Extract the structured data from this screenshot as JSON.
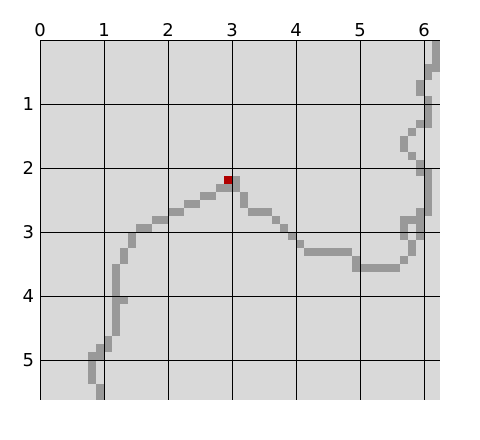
{
  "grid": {
    "x_ticks": [
      "0",
      "1",
      "2",
      "3",
      "4",
      "5",
      "6"
    ],
    "y_ticks": [
      "1",
      "2",
      "3",
      "4",
      "5"
    ],
    "background_color": "#d9d9d9",
    "grid_line_color": "#000000"
  },
  "path": {
    "color": "#999999",
    "cells": [
      [
        49,
        0
      ],
      [
        49,
        1
      ],
      [
        49,
        2
      ],
      [
        49,
        3
      ],
      [
        48,
        3
      ],
      [
        48,
        4
      ],
      [
        47,
        5
      ],
      [
        47,
        6
      ],
      [
        48,
        7
      ],
      [
        48,
        8
      ],
      [
        48,
        9
      ],
      [
        48,
        10
      ],
      [
        47,
        10
      ],
      [
        46,
        11
      ],
      [
        45,
        12
      ],
      [
        45,
        13
      ],
      [
        46,
        14
      ],
      [
        47,
        15
      ],
      [
        47,
        16
      ],
      [
        48,
        16
      ],
      [
        48,
        17
      ],
      [
        48,
        18
      ],
      [
        48,
        19
      ],
      [
        48,
        20
      ],
      [
        48,
        21
      ],
      [
        47,
        21
      ],
      [
        47,
        22
      ],
      [
        47,
        23
      ],
      [
        47,
        24
      ],
      [
        46,
        22
      ],
      [
        45,
        22
      ],
      [
        45,
        23
      ],
      [
        45,
        24
      ],
      [
        46,
        25
      ],
      [
        46,
        26
      ],
      [
        45,
        27
      ],
      [
        44,
        28
      ],
      [
        43,
        28
      ],
      [
        42,
        28
      ],
      [
        41,
        28
      ],
      [
        40,
        28
      ],
      [
        39,
        28
      ],
      [
        39,
        27
      ],
      [
        38,
        26
      ],
      [
        37,
        26
      ],
      [
        36,
        26
      ],
      [
        35,
        26
      ],
      [
        34,
        26
      ],
      [
        33,
        26
      ],
      [
        32,
        25
      ],
      [
        31,
        24
      ],
      [
        30,
        23
      ],
      [
        29,
        22
      ],
      [
        28,
        21
      ],
      [
        27,
        21
      ],
      [
        26,
        21
      ],
      [
        25,
        20
      ],
      [
        25,
        19
      ],
      [
        24,
        18
      ],
      [
        24,
        17
      ],
      [
        23,
        18
      ],
      [
        22,
        18
      ],
      [
        21,
        19
      ],
      [
        20,
        19
      ],
      [
        19,
        20
      ],
      [
        18,
        20
      ],
      [
        17,
        21
      ],
      [
        16,
        21
      ],
      [
        15,
        22
      ],
      [
        14,
        22
      ],
      [
        13,
        23
      ],
      [
        12,
        23
      ],
      [
        11,
        24
      ],
      [
        11,
        25
      ],
      [
        10,
        26
      ],
      [
        10,
        27
      ],
      [
        9,
        28
      ],
      [
        9,
        29
      ],
      [
        9,
        30
      ],
      [
        9,
        31
      ],
      [
        9,
        32
      ],
      [
        9,
        33
      ],
      [
        9,
        34
      ],
      [
        9,
        35
      ],
      [
        9,
        36
      ],
      [
        10,
        32
      ],
      [
        8,
        37
      ],
      [
        8,
        38
      ],
      [
        7,
        38
      ],
      [
        7,
        39
      ],
      [
        6,
        39
      ],
      [
        6,
        40
      ],
      [
        6,
        41
      ],
      [
        6,
        42
      ],
      [
        7,
        43
      ],
      [
        7,
        44
      ]
    ]
  },
  "agent": {
    "color": "#b00000",
    "cell": [
      23,
      17
    ]
  }
}
